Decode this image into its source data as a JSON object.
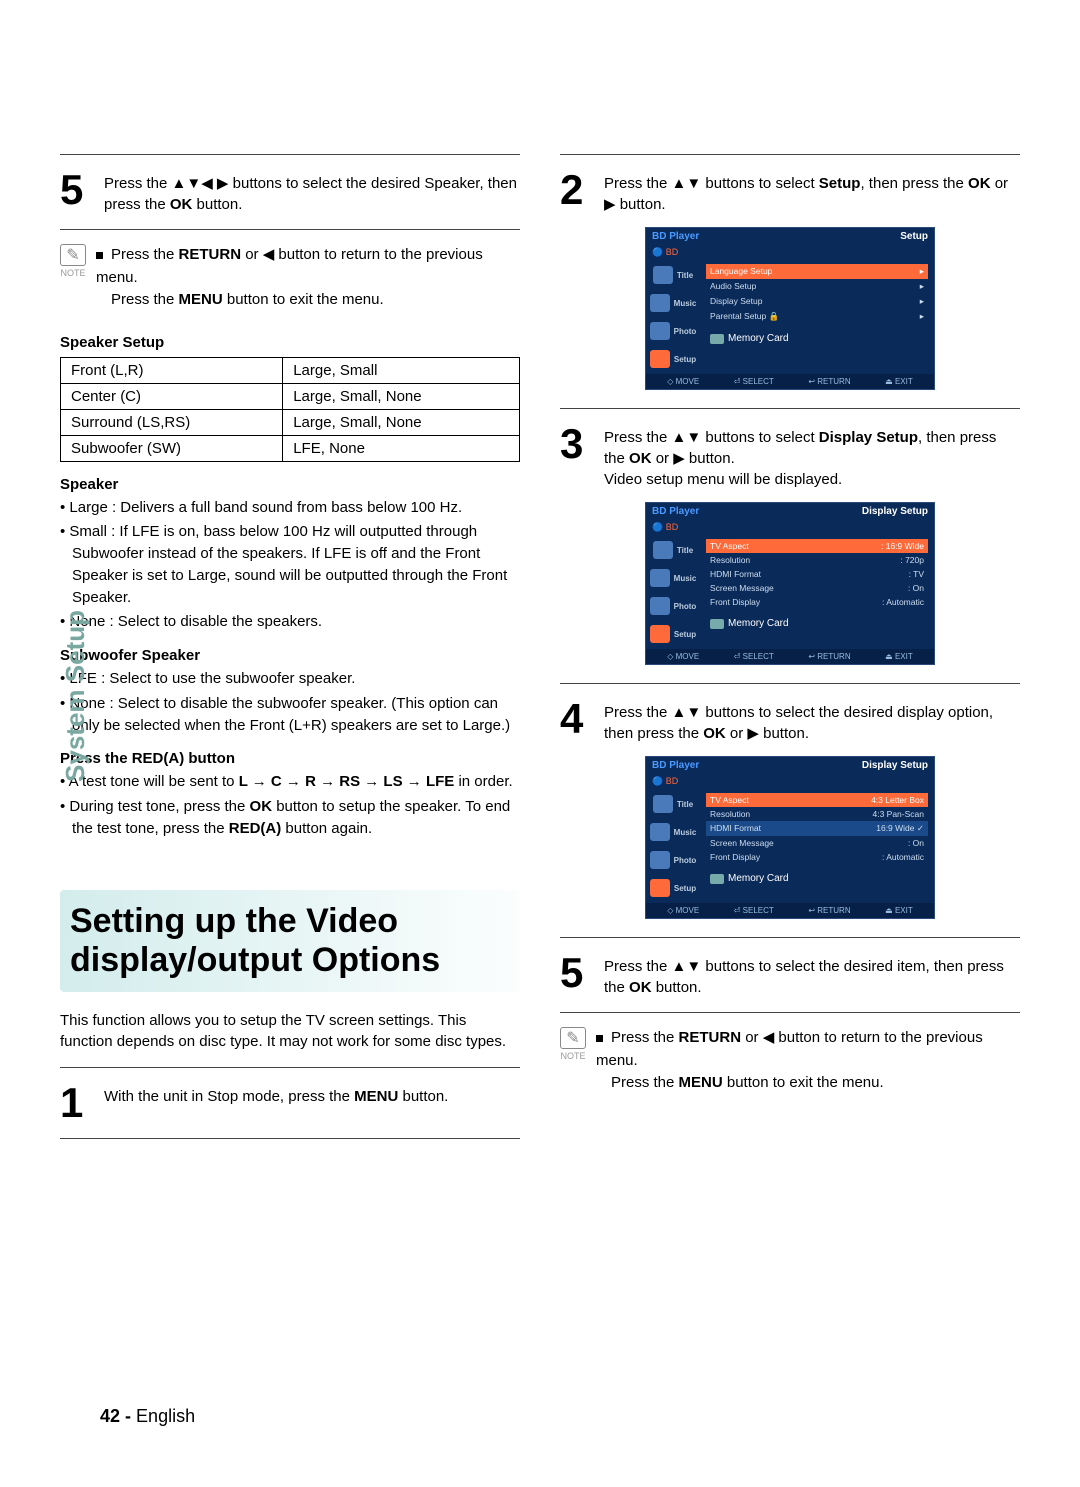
{
  "left": {
    "step5": {
      "num": "5",
      "html": "Press the ▲▼◀ ▶ buttons to select the desired Speaker, then press the <b>OK</b> button."
    },
    "note1": {
      "icon_label": "NOTE",
      "line1": "Press the <b>RETURN</b> or ◀ button to return to the previous menu.",
      "line2": "Press the <b>MENU</b> button to exit the menu."
    },
    "table_title": "Speaker Setup",
    "table_rows": [
      [
        "Front (L,R)",
        "Large, Small"
      ],
      [
        "Center (C)",
        "Large, Small, None"
      ],
      [
        "Surround (LS,RS)",
        "Large, Small, None"
      ],
      [
        "Subwoofer (SW)",
        "LFE, None"
      ]
    ],
    "speaker_title": "Speaker",
    "speaker_items": [
      "Large : Delivers a full band sound from bass below 100 Hz.",
      "Small : If LFE is on, bass below 100 Hz will outputted through Subwoofer instead of the speakers. If LFE is off and the Front Speaker is set to Large, sound will be outputted through the Front Speaker.",
      "None : Select to disable the speakers."
    ],
    "sub_title": "Subwoofer Speaker",
    "sub_items": [
      "LFE : Select to use the subwoofer speaker.",
      "None : Select to disable the subwoofer speaker. (This option can only be selected when the Front (L+R) speakers are set to Large.)"
    ],
    "red_title": "Press the RED(A) button",
    "red_items": [
      "A test tone will be sent to <b>L → C → R → RS → LS → LFE</b> in order.",
      "During test tone, press the <b>OK</b> button to setup the speaker. To end the test tone, press the <b>RED(A)</b> button again."
    ],
    "heading": "Setting up the Video display/output Options",
    "intro": "This function allows you to setup the TV screen settings. This function depends on disc type. It may not work for some disc types.",
    "step1": {
      "num": "1",
      "html": "With the unit in Stop mode, press the <b>MENU</b> button."
    }
  },
  "right": {
    "step2": {
      "num": "2",
      "html": "Press the ▲▼ buttons to select <b>Setup</b>, then press the <b>OK</b> or ▶ button."
    },
    "step3": {
      "num": "3",
      "html": "Press the ▲▼ buttons to select <b>Display Setup</b>, then press the <b>OK</b> or ▶ button.<br>Video setup menu will be displayed."
    },
    "step4": {
      "num": "4",
      "html": "Press the ▲▼ buttons to select the desired display option, then press the <b>OK</b> or ▶ button."
    },
    "step5": {
      "num": "5",
      "html": "Press the ▲▼ buttons to select the desired item, then press the <b>OK</b> button."
    },
    "note2": {
      "icon_label": "NOTE",
      "line1": "Press the <b>RETURN</b> or ◀ button to return to the previous menu.",
      "line2": "Press the <b>MENU</b> button to exit the menu."
    },
    "osd1": {
      "top_left": "BD Player",
      "top_right": "Setup",
      "tab": "BD",
      "side": [
        "Title",
        "Music",
        "Photo",
        "Setup"
      ],
      "rows": [
        {
          "label": "Language Setup",
          "val": "",
          "hi": true
        },
        {
          "label": "Audio Setup",
          "val": "",
          "hi": false
        },
        {
          "label": "Display Setup",
          "val": "",
          "hi": false
        },
        {
          "label": "Parental Setup 🔒",
          "val": "",
          "hi": false
        }
      ],
      "mem": "Memory Card",
      "foot": [
        "◇ MOVE",
        "⏎ SELECT",
        "↩ RETURN",
        "⏏ EXIT"
      ]
    },
    "osd2": {
      "top_left": "BD Player",
      "top_right": "Display Setup",
      "tab": "BD",
      "side": [
        "Title",
        "Music",
        "Photo",
        "Setup"
      ],
      "rows": [
        {
          "label": "TV Aspect",
          "val": ": 16:9 Wide",
          "hi": true
        },
        {
          "label": "Resolution",
          "val": ": 720p",
          "hi": false
        },
        {
          "label": "HDMI Format",
          "val": ": TV",
          "hi": false
        },
        {
          "label": "Screen Message",
          "val": ": On",
          "hi": false
        },
        {
          "label": "Front Display",
          "val": ": Automatic",
          "hi": false
        }
      ],
      "mem": "Memory Card",
      "foot": [
        "◇ MOVE",
        "⏎ SELECT",
        "↩ RETURN",
        "⏏ EXIT"
      ]
    },
    "osd3": {
      "top_left": "BD Player",
      "top_right": "Display Setup",
      "tab": "BD",
      "side": [
        "Title",
        "Music",
        "Photo",
        "Setup"
      ],
      "rows": [
        {
          "label": "TV Aspect",
          "val": "4:3 Letter Box",
          "hi": true,
          "pop": false
        },
        {
          "label": "Resolution",
          "val": "4:3 Pan-Scan",
          "hi": false,
          "pop": true
        },
        {
          "label": "HDMI Format",
          "val": "16:9 Wide   ✓",
          "hi": false,
          "pop": true,
          "sel": true
        },
        {
          "label": "Screen Message",
          "val": ": On",
          "hi": false
        },
        {
          "label": "Front Display",
          "val": ": Automatic",
          "hi": false
        }
      ],
      "mem": "Memory Card",
      "foot": [
        "◇ MOVE",
        "⏎ SELECT",
        "↩ RETURN",
        "⏏ EXIT"
      ]
    }
  },
  "vert_label": "System Setup",
  "footer": {
    "page": "42 -",
    "lang": "English"
  },
  "colors": {
    "accent": "#ff6a3a",
    "osd_bg": "#0a2a5a",
    "vert_label_color": "#7aa8a0"
  }
}
